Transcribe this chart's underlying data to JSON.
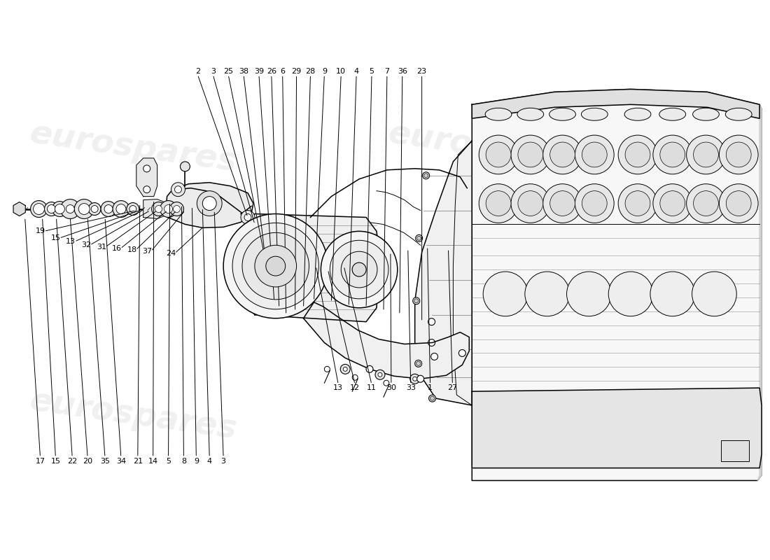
{
  "background_color": "#ffffff",
  "line_color": "#000000",
  "watermark_color_top": "#c8c8c8",
  "watermark_color_bot": "#c8c8c8",
  "figsize": [
    11.0,
    8.0
  ],
  "dpi": 100,
  "top_labels": [
    [
      "2",
      278,
      108
    ],
    [
      "3",
      300,
      108
    ],
    [
      "25",
      322,
      108
    ],
    [
      "38",
      344,
      108
    ],
    [
      "39",
      366,
      108
    ],
    [
      "26",
      384,
      108
    ],
    [
      "6",
      400,
      108
    ],
    [
      "29",
      420,
      108
    ],
    [
      "28",
      440,
      108
    ],
    [
      "9",
      460,
      108
    ],
    [
      "10",
      484,
      108
    ],
    [
      "4",
      506,
      108
    ],
    [
      "5",
      528,
      108
    ],
    [
      "7",
      550,
      108
    ],
    [
      "36",
      572,
      108
    ],
    [
      "23",
      600,
      108
    ]
  ],
  "left_labels": [
    [
      "19",
      52,
      328
    ],
    [
      "15",
      74,
      328
    ],
    [
      "13",
      96,
      328
    ],
    [
      "32",
      118,
      328
    ],
    [
      "31",
      140,
      328
    ],
    [
      "16",
      162,
      328
    ],
    [
      "18",
      184,
      328
    ],
    [
      "37",
      206,
      328
    ],
    [
      "24",
      240,
      328
    ]
  ],
  "bottom_left_labels": [
    [
      "17",
      52,
      660
    ],
    [
      "15",
      74,
      660
    ],
    [
      "22",
      98,
      660
    ],
    [
      "20",
      120,
      660
    ],
    [
      "35",
      145,
      660
    ],
    [
      "34",
      168,
      660
    ],
    [
      "21",
      192,
      660
    ],
    [
      "14",
      214,
      660
    ],
    [
      "5",
      236,
      660
    ],
    [
      "8",
      258,
      660
    ],
    [
      "9",
      276,
      660
    ],
    [
      "4",
      295,
      660
    ],
    [
      "3",
      315,
      660
    ]
  ],
  "bottom_right_labels": [
    [
      "13",
      480,
      560
    ],
    [
      "12",
      504,
      560
    ],
    [
      "11",
      528,
      560
    ],
    [
      "30",
      556,
      560
    ],
    [
      "33",
      584,
      560
    ],
    [
      "1",
      612,
      560
    ],
    [
      "27",
      644,
      560
    ]
  ]
}
